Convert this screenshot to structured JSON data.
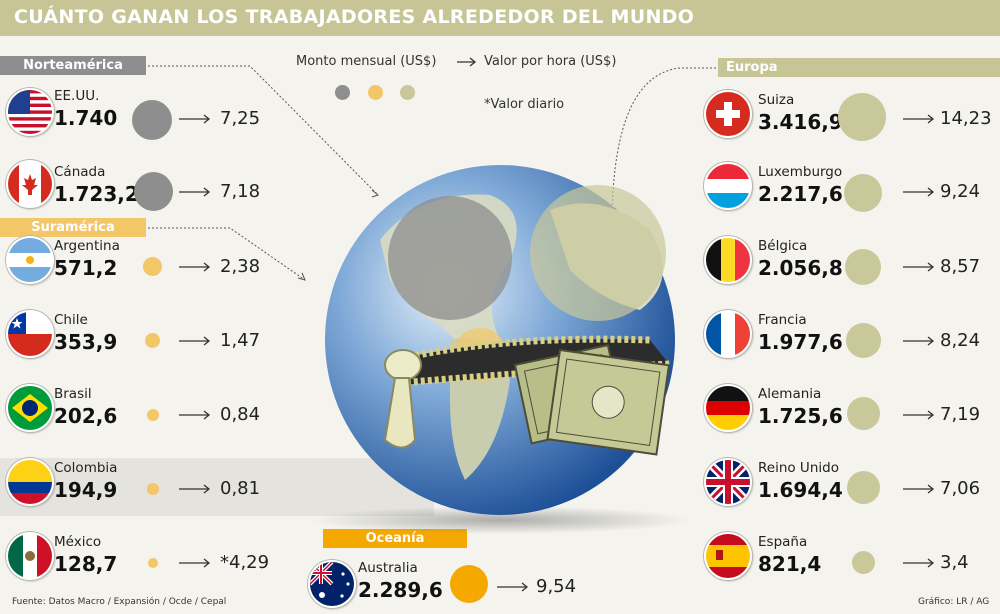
{
  "title": "CUÁNTO GANAN LOS TRABAJADORES ALREDEDOR DEL MUNDO",
  "legend": {
    "monthly": "Monto mensual (US$)",
    "arrow": "→",
    "hourly": "Valor por hora (US$)",
    "daily_note": "*Valor diario"
  },
  "regions": {
    "north_america": "Norteamérica",
    "south_america": "Suramérica",
    "europe": "Europa",
    "oceania": "Oceanía"
  },
  "colors": {
    "north_america_bubble": "#8e8e8e",
    "south_america_bubble": "#f3c667",
    "europe_bubble": "#c9c89a",
    "oceania_bubble": "#f5a800",
    "region_tag_gray": "#8e8e8e",
    "region_tag_yellow": "#f3c667",
    "region_tag_olive": "#c7c596",
    "region_tag_orange": "#f5a800"
  },
  "countries_left": [
    {
      "name": "EE.UU.",
      "monthly": "1.740",
      "hourly": "7,25",
      "flag": "usa-flag"
    },
    {
      "name": "Cánada",
      "monthly": "1.723,2",
      "hourly": "7,18",
      "flag": "canada-flag"
    },
    {
      "name": "Argentina",
      "monthly": "571,2",
      "hourly": "2,38",
      "flag": "argentina-flag"
    },
    {
      "name": "Chile",
      "monthly": "353,9",
      "hourly": "1,47",
      "flag": "chile-flag"
    },
    {
      "name": "Brasil",
      "monthly": "202,6",
      "hourly": "0,84",
      "flag": "brazil-flag"
    },
    {
      "name": "Colombia",
      "monthly": "194,9",
      "hourly": "0,81",
      "flag": "colombia-flag"
    },
    {
      "name": "México",
      "monthly": "128,7",
      "hourly": "*4,29",
      "flag": "mexico-flag"
    }
  ],
  "countries_right": [
    {
      "name": "Suiza",
      "monthly": "3.416,9",
      "hourly": "14,23",
      "flag": "switzerland-flag"
    },
    {
      "name": "Luxemburgo",
      "monthly": "2.217,6",
      "hourly": "9,24",
      "flag": "luxembourg-flag"
    },
    {
      "name": "Bélgica",
      "monthly": "2.056,8",
      "hourly": "8,57",
      "flag": "belgium-flag"
    },
    {
      "name": "Francia",
      "monthly": "1.977,6",
      "hourly": "8,24",
      "flag": "france-flag"
    },
    {
      "name": "Alemania",
      "monthly": "1.725,6",
      "hourly": "7,19",
      "flag": "germany-flag"
    },
    {
      "name": "Reino Unido",
      "monthly": "1.694,4",
      "hourly": "7,06",
      "flag": "uk-flag"
    },
    {
      "name": "España",
      "monthly": "821,4",
      "hourly": "3,4",
      "flag": "spain-flag"
    }
  ],
  "oceania_country": {
    "name": "Australia",
    "monthly": "2.289,6",
    "hourly": "9,54",
    "flag": "australia-flag"
  },
  "source": "Fuente: Datos Macro / Expansión / Ocde / Cepal",
  "credit": "Gráfico: LR / AG",
  "illustration": "globe-with-zipper-and-dollar-bills"
}
